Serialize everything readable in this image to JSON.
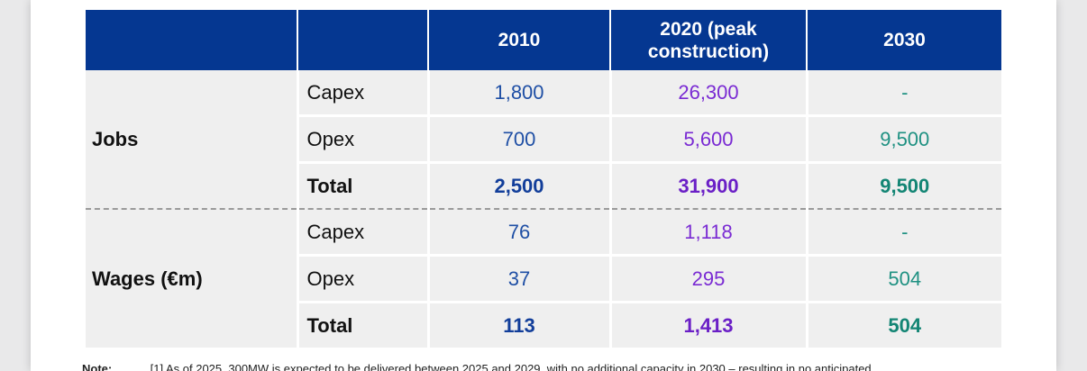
{
  "table": {
    "columns": [
      "",
      "",
      "2010",
      "2020 (peak construction)",
      "2030"
    ],
    "groups": [
      {
        "label": "Jobs",
        "rows": [
          {
            "label": "Capex",
            "v2010": "1,800",
            "v2020": "26,300",
            "v2030": "-"
          },
          {
            "label": "Opex",
            "v2010": "700",
            "v2020": "5,600",
            "v2030": "9,500"
          },
          {
            "label": "Total",
            "v2010": "2,500",
            "v2020": "31,900",
            "v2030": "9,500"
          }
        ]
      },
      {
        "label": "Wages (€m)",
        "rows": [
          {
            "label": "Capex",
            "v2010": "76",
            "v2020": "1,118",
            "v2030": "-"
          },
          {
            "label": "Opex",
            "v2010": "37",
            "v2020": "295",
            "v2030": "504"
          },
          {
            "label": "Total",
            "v2010": "113",
            "v2020": "1,413",
            "v2030": "504"
          }
        ]
      }
    ]
  },
  "note": {
    "label": "Note:",
    "text": "[1] As of 2025, 300MW is expected to be delivered between 2025 and 2029, with no additional capacity in 2030 – resulting in no anticipated"
  },
  "colors": {
    "header_bg": "#053791",
    "cell_bg": "#efefef",
    "col_2010": "#1f4fa5",
    "col_2020": "#7a2bd3",
    "col_2030": "#1f9182"
  }
}
